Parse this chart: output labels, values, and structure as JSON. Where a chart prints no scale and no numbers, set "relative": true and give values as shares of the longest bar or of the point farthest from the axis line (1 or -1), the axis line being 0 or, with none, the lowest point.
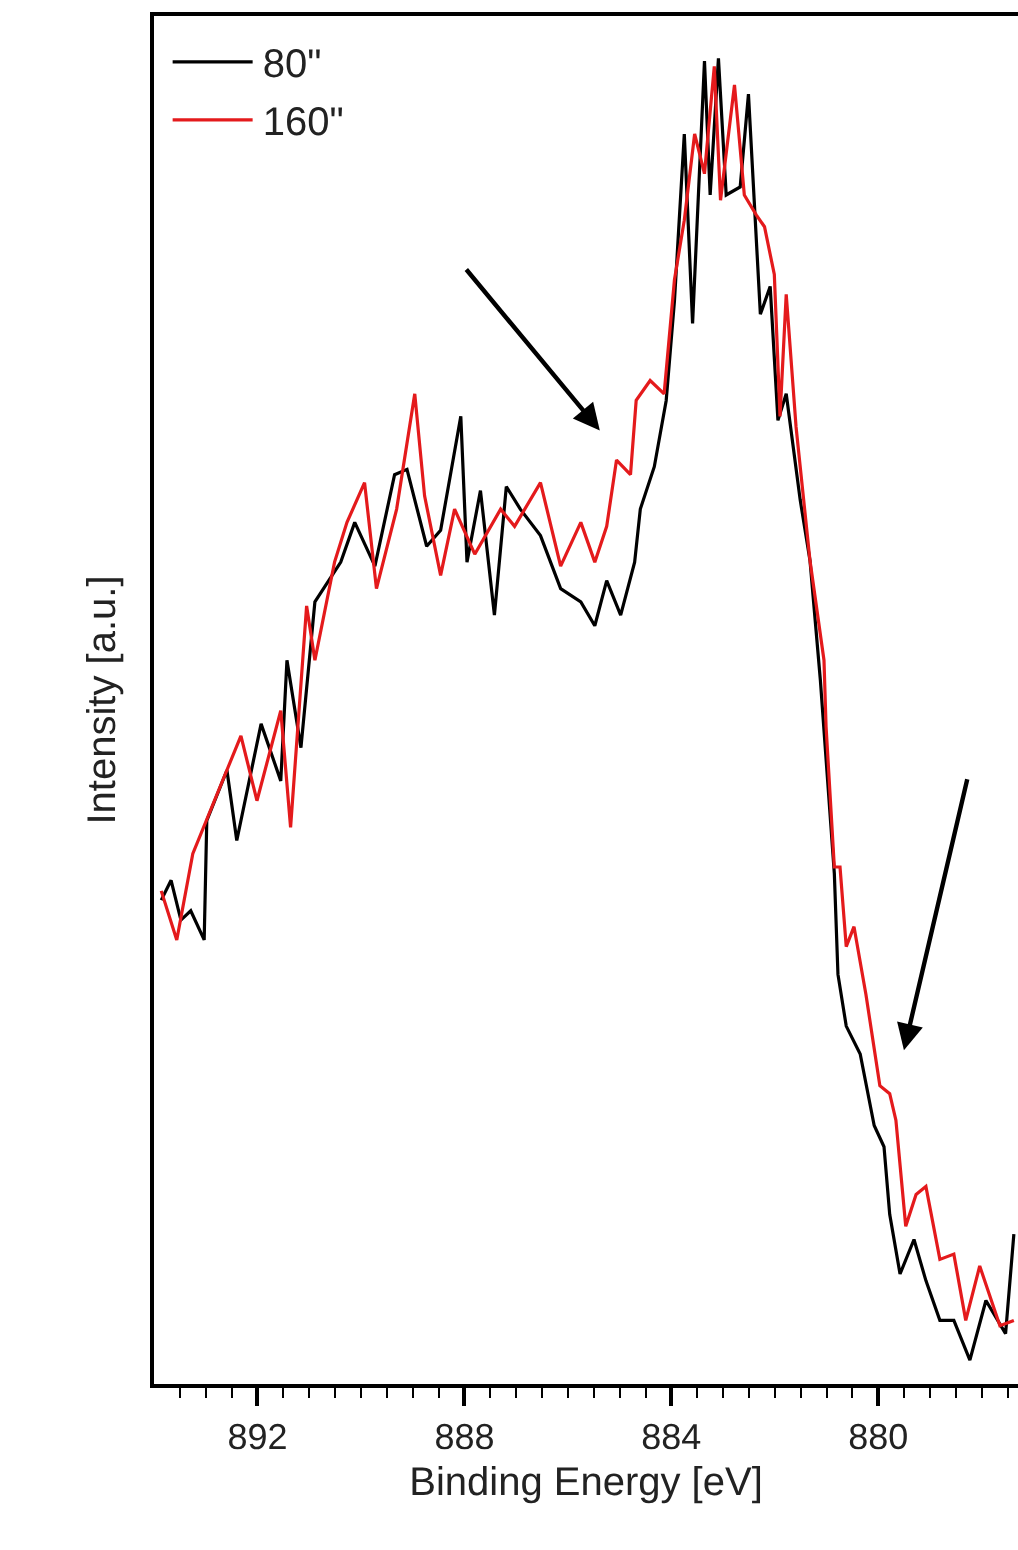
{
  "chart_data": {
    "type": "line",
    "xlabel": "Binding Energy [eV]",
    "ylabel": "Intensity [a.u.]",
    "relative": true,
    "legend": "top left",
    "xlim": [
      894,
      877.3
    ],
    "xticks": [
      {
        "value": 893.5,
        "label": null
      },
      {
        "value": 893,
        "label": null
      },
      {
        "value": 892.5,
        "label": null
      },
      892,
      {
        "value": 891.5,
        "label": null
      },
      {
        "value": 891,
        "label": null
      },
      {
        "value": 890.5,
        "label": null
      },
      {
        "value": 890,
        "label": null
      },
      {
        "value": 889.5,
        "label": null
      },
      {
        "value": 889,
        "label": null
      },
      {
        "value": 888.5,
        "label": null
      },
      888,
      {
        "value": 887.5,
        "label": null
      },
      {
        "value": 887,
        "label": null
      },
      {
        "value": 886.5,
        "label": null
      },
      {
        "value": 886,
        "label": null
      },
      {
        "value": 885.5,
        "label": null
      },
      {
        "value": 885,
        "label": null
      },
      {
        "value": 884.5,
        "label": null
      },
      884,
      {
        "value": 883.5,
        "label": null
      },
      {
        "value": 883,
        "label": null
      },
      {
        "value": 882.5,
        "label": null
      },
      {
        "value": 882,
        "label": null
      },
      {
        "value": 881.5,
        "label": null
      },
      {
        "value": 881,
        "label": null
      },
      {
        "value": 880.5,
        "label": null
      },
      880,
      {
        "value": 879.5,
        "label": null
      },
      {
        "value": 879,
        "label": null
      },
      {
        "value": 878.5,
        "label": null
      },
      {
        "value": 878,
        "label": null
      },
      {
        "value": 877.5,
        "label": null
      }
    ],
    "series": [
      {
        "name": "80\"",
        "color": "#000000",
        "x": [
          893.86,
          893.67,
          893.48,
          893.29,
          893.03,
          892.98,
          892.59,
          892.4,
          891.93,
          891.55,
          891.43,
          891.16,
          890.89,
          890.39,
          890.12,
          889.73,
          889.35,
          889.11,
          888.96,
          888.73,
          888.46,
          888.07,
          887.95,
          887.69,
          887.42,
          887.19,
          886.92,
          886.53,
          886.14,
          885.75,
          885.48,
          885.25,
          884.98,
          884.71,
          884.6,
          884.33,
          884.1,
          883.94,
          883.75,
          883.59,
          883.36,
          883.25,
          883.09,
          882.94,
          882.67,
          882.51,
          882.28,
          882.09,
          881.94,
          881.78,
          881.51,
          881.32,
          881.12,
          880.85,
          880.78,
          880.62,
          880.35,
          880.08,
          879.89,
          879.78,
          879.58,
          879.31,
          879.08,
          878.81,
          878.54,
          878.23,
          877.92,
          877.54,
          877.38
        ],
        "values": [
          0.365,
          0.38,
          0.35,
          0.357,
          0.335,
          0.425,
          0.463,
          0.41,
          0.498,
          0.455,
          0.546,
          0.48,
          0.59,
          0.62,
          0.65,
          0.617,
          0.686,
          0.69,
          0.667,
          0.632,
          0.644,
          0.73,
          0.62,
          0.674,
          0.58,
          0.677,
          0.66,
          0.64,
          0.6,
          0.59,
          0.572,
          0.606,
          0.58,
          0.62,
          0.66,
          0.692,
          0.742,
          0.817,
          0.943,
          0.8,
          0.998,
          0.897,
          1.0,
          0.897,
          0.903,
          0.973,
          0.807,
          0.828,
          0.727,
          0.747,
          0.667,
          0.621,
          0.531,
          0.385,
          0.309,
          0.27,
          0.249,
          0.195,
          0.179,
          0.128,
          0.083,
          0.109,
          0.078,
          0.048,
          0.048,
          0.018,
          0.063,
          0.038,
          0.113
        ]
      },
      {
        "name": "160\"",
        "color": "#e41a1c",
        "x": [
          893.86,
          893.56,
          893.25,
          892.32,
          892.01,
          891.55,
          891.36,
          891.05,
          890.89,
          890.51,
          890.27,
          889.93,
          889.7,
          889.31,
          888.96,
          888.77,
          888.46,
          888.19,
          887.8,
          887.3,
          887.03,
          886.53,
          886.14,
          885.75,
          885.48,
          885.25,
          885.06,
          884.79,
          884.68,
          884.41,
          884.14,
          883.94,
          883.75,
          883.55,
          883.36,
          883.17,
          883.05,
          882.78,
          882.59,
          882.36,
          882.2,
          882.01,
          881.9,
          881.78,
          881.59,
          881.32,
          881.05,
          881.01,
          880.85,
          880.74,
          880.62,
          880.47,
          880.24,
          879.97,
          879.78,
          879.66,
          879.47,
          879.27,
          879.08,
          878.81,
          878.54,
          878.31,
          878.04,
          877.65,
          877.38
        ],
        "values": [
          0.372,
          0.335,
          0.4,
          0.489,
          0.44,
          0.508,
          0.42,
          0.587,
          0.546,
          0.62,
          0.65,
          0.68,
          0.6,
          0.66,
          0.747,
          0.67,
          0.61,
          0.66,
          0.626,
          0.66,
          0.647,
          0.68,
          0.617,
          0.65,
          0.62,
          0.647,
          0.697,
          0.686,
          0.742,
          0.757,
          0.747,
          0.833,
          0.878,
          0.943,
          0.913,
          0.994,
          0.893,
          0.98,
          0.897,
          0.882,
          0.873,
          0.837,
          0.73,
          0.822,
          0.722,
          0.621,
          0.546,
          0.496,
          0.39,
          0.39,
          0.33,
          0.345,
          0.294,
          0.225,
          0.219,
          0.199,
          0.119,
          0.143,
          0.149,
          0.094,
          0.098,
          0.048,
          0.089,
          0.044,
          0.048
        ]
      }
    ]
  }
}
